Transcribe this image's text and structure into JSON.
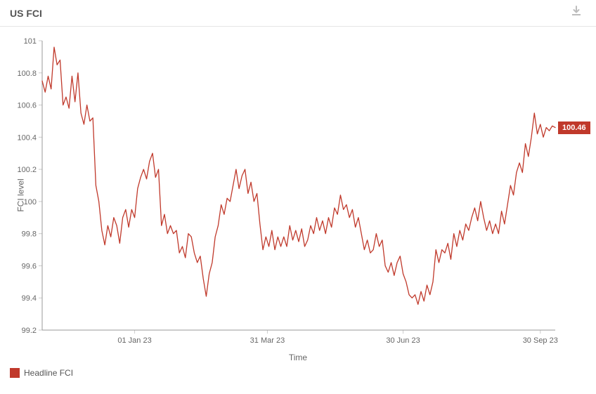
{
  "title": "US FCI",
  "download_icon_name": "download-icon",
  "chart": {
    "type": "line",
    "ylabel": "FCI level",
    "xlabel": "Time",
    "ylim": [
      99.2,
      101.0
    ],
    "ytick_step": 0.2,
    "yticks": [
      99.2,
      99.4,
      99.6,
      99.8,
      100.0,
      100.2,
      100.4,
      100.6,
      100.8,
      101.0
    ],
    "ytick_labels": [
      "99.2",
      "99.4",
      "99.6",
      "99.8",
      "100",
      "100.2",
      "100.4",
      "100.6",
      "100.8",
      "101"
    ],
    "xticks": [
      62,
      151,
      242,
      334
    ],
    "xtick_labels": [
      "01 Jan 23",
      "31 Mar 23",
      "30 Jun 23",
      "30 Sep 23"
    ],
    "line_color": "#c0392b",
    "line_width": 1.3,
    "background_color": "#ffffff",
    "grid_color": "#e6e6e6",
    "tick_color": "#cccccc",
    "axis_color": "#999999",
    "label_color": "#666666",
    "label_fontsize": 12,
    "tick_fontsize": 11,
    "last_value": 100.46,
    "last_value_label": "100.46",
    "badge_bg": "#c0392b",
    "badge_text_color": "#ffffff",
    "data": [
      [
        0,
        100.75
      ],
      [
        2,
        100.68
      ],
      [
        4,
        100.78
      ],
      [
        6,
        100.7
      ],
      [
        8,
        100.96
      ],
      [
        10,
        100.85
      ],
      [
        12,
        100.88
      ],
      [
        14,
        100.6
      ],
      [
        16,
        100.65
      ],
      [
        18,
        100.58
      ],
      [
        20,
        100.78
      ],
      [
        22,
        100.62
      ],
      [
        24,
        100.8
      ],
      [
        26,
        100.55
      ],
      [
        28,
        100.48
      ],
      [
        30,
        100.6
      ],
      [
        32,
        100.5
      ],
      [
        34,
        100.52
      ],
      [
        36,
        100.1
      ],
      [
        38,
        100.0
      ],
      [
        40,
        99.82
      ],
      [
        42,
        99.73
      ],
      [
        44,
        99.85
      ],
      [
        46,
        99.78
      ],
      [
        48,
        99.9
      ],
      [
        50,
        99.85
      ],
      [
        52,
        99.74
      ],
      [
        54,
        99.9
      ],
      [
        56,
        99.95
      ],
      [
        58,
        99.84
      ],
      [
        60,
        99.95
      ],
      [
        62,
        99.9
      ],
      [
        64,
        100.08
      ],
      [
        66,
        100.15
      ],
      [
        68,
        100.2
      ],
      [
        70,
        100.14
      ],
      [
        72,
        100.25
      ],
      [
        74,
        100.3
      ],
      [
        76,
        100.15
      ],
      [
        78,
        100.2
      ],
      [
        80,
        99.85
      ],
      [
        82,
        99.92
      ],
      [
        84,
        99.8
      ],
      [
        86,
        99.85
      ],
      [
        88,
        99.8
      ],
      [
        90,
        99.82
      ],
      [
        92,
        99.68
      ],
      [
        94,
        99.72
      ],
      [
        96,
        99.65
      ],
      [
        98,
        99.8
      ],
      [
        100,
        99.78
      ],
      [
        102,
        99.68
      ],
      [
        104,
        99.62
      ],
      [
        106,
        99.66
      ],
      [
        108,
        99.52
      ],
      [
        110,
        99.41
      ],
      [
        112,
        99.55
      ],
      [
        114,
        99.62
      ],
      [
        116,
        99.78
      ],
      [
        118,
        99.85
      ],
      [
        120,
        99.98
      ],
      [
        122,
        99.92
      ],
      [
        124,
        100.02
      ],
      [
        126,
        100.0
      ],
      [
        128,
        100.1
      ],
      [
        130,
        100.2
      ],
      [
        132,
        100.08
      ],
      [
        134,
        100.16
      ],
      [
        136,
        100.2
      ],
      [
        138,
        100.05
      ],
      [
        140,
        100.12
      ],
      [
        142,
        100.0
      ],
      [
        144,
        100.05
      ],
      [
        146,
        99.86
      ],
      [
        148,
        99.7
      ],
      [
        150,
        99.78
      ],
      [
        152,
        99.72
      ],
      [
        154,
        99.82
      ],
      [
        156,
        99.7
      ],
      [
        158,
        99.78
      ],
      [
        160,
        99.72
      ],
      [
        162,
        99.78
      ],
      [
        164,
        99.72
      ],
      [
        166,
        99.85
      ],
      [
        168,
        99.76
      ],
      [
        170,
        99.82
      ],
      [
        172,
        99.75
      ],
      [
        174,
        99.83
      ],
      [
        176,
        99.72
      ],
      [
        178,
        99.76
      ],
      [
        180,
        99.85
      ],
      [
        182,
        99.8
      ],
      [
        184,
        99.9
      ],
      [
        186,
        99.82
      ],
      [
        188,
        99.88
      ],
      [
        190,
        99.8
      ],
      [
        192,
        99.9
      ],
      [
        194,
        99.84
      ],
      [
        196,
        99.96
      ],
      [
        198,
        99.92
      ],
      [
        200,
        100.04
      ],
      [
        202,
        99.95
      ],
      [
        204,
        99.98
      ],
      [
        206,
        99.9
      ],
      [
        208,
        99.95
      ],
      [
        210,
        99.84
      ],
      [
        212,
        99.9
      ],
      [
        214,
        99.8
      ],
      [
        216,
        99.7
      ],
      [
        218,
        99.76
      ],
      [
        220,
        99.68
      ],
      [
        222,
        99.7
      ],
      [
        224,
        99.8
      ],
      [
        226,
        99.72
      ],
      [
        228,
        99.76
      ],
      [
        230,
        99.6
      ],
      [
        232,
        99.56
      ],
      [
        234,
        99.62
      ],
      [
        236,
        99.54
      ],
      [
        238,
        99.62
      ],
      [
        240,
        99.66
      ],
      [
        242,
        99.55
      ],
      [
        244,
        99.5
      ],
      [
        246,
        99.42
      ],
      [
        248,
        99.4
      ],
      [
        250,
        99.42
      ],
      [
        252,
        99.36
      ],
      [
        254,
        99.44
      ],
      [
        256,
        99.38
      ],
      [
        258,
        99.48
      ],
      [
        260,
        99.42
      ],
      [
        262,
        99.5
      ],
      [
        264,
        99.7
      ],
      [
        266,
        99.62
      ],
      [
        268,
        99.7
      ],
      [
        270,
        99.68
      ],
      [
        272,
        99.74
      ],
      [
        274,
        99.64
      ],
      [
        276,
        99.8
      ],
      [
        278,
        99.72
      ],
      [
        280,
        99.82
      ],
      [
        282,
        99.76
      ],
      [
        284,
        99.86
      ],
      [
        286,
        99.82
      ],
      [
        288,
        99.9
      ],
      [
        290,
        99.96
      ],
      [
        292,
        99.88
      ],
      [
        294,
        100.0
      ],
      [
        296,
        99.9
      ],
      [
        298,
        99.82
      ],
      [
        300,
        99.88
      ],
      [
        302,
        99.8
      ],
      [
        304,
        99.86
      ],
      [
        306,
        99.8
      ],
      [
        308,
        99.94
      ],
      [
        310,
        99.86
      ],
      [
        312,
        99.98
      ],
      [
        314,
        100.1
      ],
      [
        316,
        100.04
      ],
      [
        318,
        100.18
      ],
      [
        320,
        100.24
      ],
      [
        322,
        100.18
      ],
      [
        324,
        100.36
      ],
      [
        326,
        100.28
      ],
      [
        328,
        100.4
      ],
      [
        330,
        100.55
      ],
      [
        332,
        100.42
      ],
      [
        334,
        100.48
      ],
      [
        336,
        100.4
      ],
      [
        338,
        100.46
      ],
      [
        340,
        100.44
      ],
      [
        342,
        100.47
      ],
      [
        344,
        100.46
      ]
    ]
  },
  "legend": {
    "swatch_color": "#c0392b",
    "label": "Headline FCI"
  }
}
